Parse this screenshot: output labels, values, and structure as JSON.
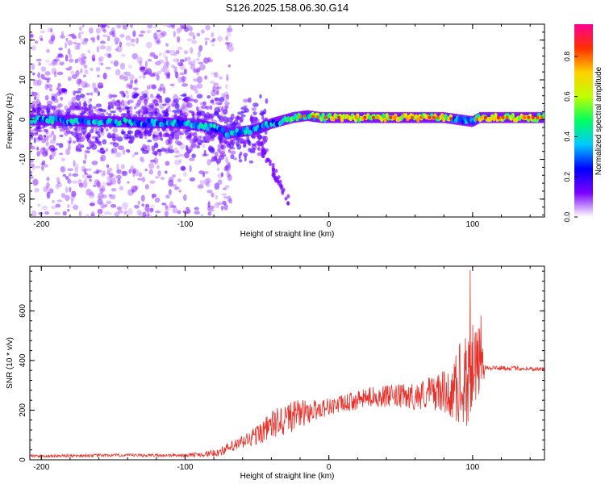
{
  "title": "S126.2025.158.06.30.G14",
  "colorbar": {
    "label": "Normalized spectral amplitude",
    "ticks": [
      "0.0",
      "0.2",
      "0.4",
      "0.6",
      "0.8"
    ],
    "tick_values": [
      0.0,
      0.2,
      0.4,
      0.6,
      0.8
    ],
    "range": [
      0,
      0.96
    ],
    "colors": [
      "#ffffff",
      "#7b00ff",
      "#0000ff",
      "#00c8ff",
      "#00ff60",
      "#c0ff00",
      "#ffd000",
      "#ff3000",
      "#ff0090"
    ]
  },
  "chart_data": [
    {
      "type": "heatmap",
      "name": "spectrogram",
      "xlabel": "Height of straight line (km)",
      "ylabel": "Frequency (Hz)",
      "xlim": [
        -208,
        150
      ],
      "ylim": [
        -24.5,
        24
      ],
      "xticks": [
        -200,
        -100,
        0,
        100
      ],
      "yticks": [
        20,
        10,
        0,
        -10,
        -20
      ],
      "centerline": [
        [
          -208,
          0
        ],
        [
          -100,
          -1
        ],
        [
          -90,
          -1.5
        ],
        [
          -80,
          -2
        ],
        [
          -70,
          -3.5
        ],
        [
          -60,
          -3
        ],
        [
          -50,
          -2.5
        ],
        [
          -40,
          -1
        ],
        [
          -30,
          0
        ],
        [
          -25,
          0.5
        ],
        [
          -15,
          1
        ],
        [
          -5,
          0.5
        ],
        [
          0,
          0.5
        ],
        [
          20,
          0.5
        ],
        [
          60,
          0.5
        ],
        [
          80,
          0.5
        ],
        [
          90,
          0
        ],
        [
          100,
          -0.5
        ],
        [
          105,
          0.5
        ],
        [
          150,
          0.5
        ]
      ]
    },
    {
      "type": "line",
      "name": "snr",
      "xlabel": "Height of straight line (km)",
      "ylabel": "SNR (10 * v/v)",
      "xlim": [
        -208,
        150
      ],
      "ylim": [
        0,
        780
      ],
      "xticks": [
        -200,
        -100,
        0,
        100
      ],
      "yticks": [
        0,
        200,
        400,
        600
      ],
      "color": "#e8302a",
      "envelope": [
        [
          -208,
          15
        ],
        [
          -150,
          18
        ],
        [
          -100,
          18
        ],
        [
          -80,
          25
        ],
        [
          -70,
          45
        ],
        [
          -60,
          70
        ],
        [
          -50,
          100
        ],
        [
          -40,
          140
        ],
        [
          -30,
          165
        ],
        [
          -20,
          185
        ],
        [
          -10,
          200
        ],
        [
          0,
          215
        ],
        [
          10,
          225
        ],
        [
          20,
          240
        ],
        [
          30,
          255
        ],
        [
          40,
          255
        ],
        [
          50,
          255
        ],
        [
          60,
          255
        ],
        [
          70,
          270
        ],
        [
          80,
          275
        ],
        [
          85,
          260
        ],
        [
          90,
          300
        ],
        [
          95,
          340
        ],
        [
          100,
          360
        ],
        [
          105,
          380
        ],
        [
          108,
          372
        ],
        [
          120,
          370
        ],
        [
          150,
          365
        ]
      ],
      "noise_amplitude": [
        [
          -208,
          6
        ],
        [
          -100,
          6
        ],
        [
          -80,
          15
        ],
        [
          -60,
          30
        ],
        [
          -40,
          55
        ],
        [
          -30,
          70
        ],
        [
          -10,
          45
        ],
        [
          0,
          35
        ],
        [
          30,
          40
        ],
        [
          60,
          55
        ],
        [
          85,
          90
        ],
        [
          95,
          220
        ],
        [
          105,
          150
        ],
        [
          109,
          10
        ],
        [
          150,
          8
        ]
      ]
    }
  ]
}
